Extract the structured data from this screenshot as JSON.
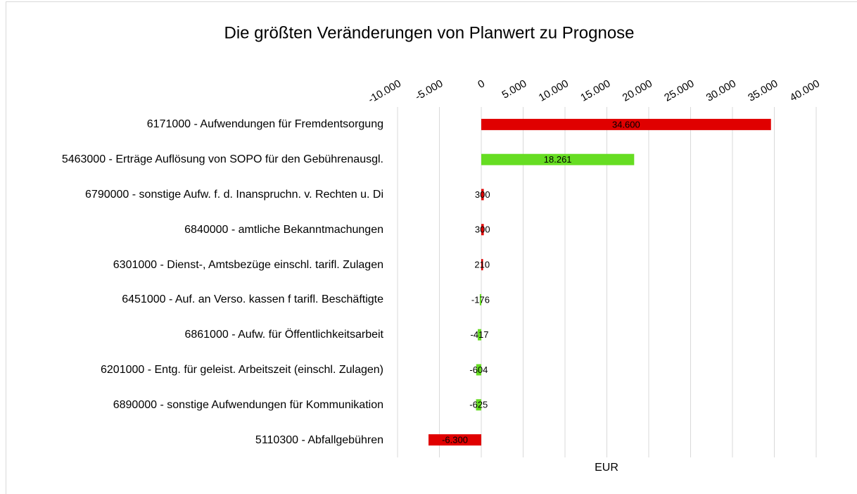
{
  "chart_data": {
    "type": "bar",
    "orientation": "horizontal",
    "title": "Die größten Veränderungen von Planwert zu Prognose",
    "x_label": "EUR",
    "categories": [
      "6171000 - Aufwendungen für Fremdentsorgung",
      "5463000 - Erträge Auflösung von  SOPO für den Gebührenausgl.",
      "6790000 - sonstige Aufw. f. d. Inanspruchn. v. Rechten u. Di",
      "6840000 - amtliche Bekanntmachungen",
      "6301000 - Dienst-, Amtsbezüge einschl. tarifl. Zulagen",
      "6451000 - Auf. an Verso. kassen f tarifl. Beschäftigte",
      "6861000 - Aufw. für Öffentlichkeitsarbeit",
      "6201000 - Entg. für geleist. Arbeitszeit (einschl. Zulagen)",
      "6890000 - sonstige Aufwendungen für Kommunikation",
      "5110300 - Abfallgebühren"
    ],
    "values": [
      34600,
      18261,
      300,
      300,
      210,
      -176,
      -417,
      -604,
      -625,
      -6300
    ],
    "value_labels": [
      "34.600",
      "18.261",
      "300",
      "300",
      "210",
      "-176",
      "-417",
      "-604",
      "-625",
      "-6.300"
    ],
    "colors": [
      "#e00000",
      "#66dd22",
      "#e00000",
      "#e00000",
      "#e00000",
      "#66dd22",
      "#66dd22",
      "#66dd22",
      "#66dd22",
      "#e00000"
    ],
    "xlim": [
      -10000,
      40000
    ],
    "xticks": [
      {
        "value": -10000,
        "label": "-10.000"
      },
      {
        "value": -5000,
        "label": "-5.000"
      },
      0,
      {
        "value": 5000,
        "label": "5.000"
      },
      {
        "value": 10000,
        "label": "10.000"
      },
      {
        "value": 15000,
        "label": "15.000"
      },
      {
        "value": 20000,
        "label": "20.000"
      },
      {
        "value": 25000,
        "label": "25.000"
      },
      {
        "value": 30000,
        "label": "30.000"
      },
      {
        "value": 35000,
        "label": "35.000"
      },
      {
        "value": 40000,
        "label": "40.000"
      }
    ],
    "grid": true
  }
}
